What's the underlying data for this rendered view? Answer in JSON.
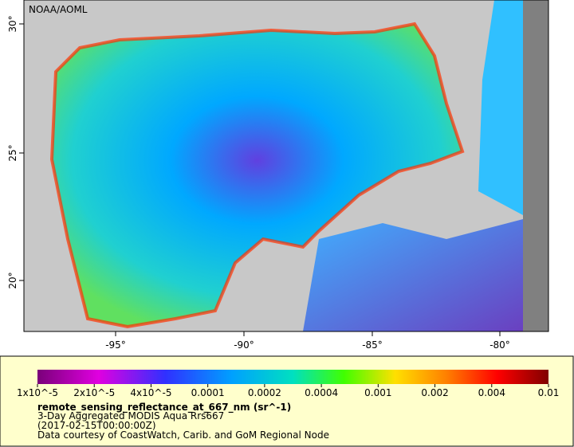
{
  "map": {
    "credit": "NOAA/AOML",
    "lat_labels": [
      "30°",
      "25°",
      "20°"
    ],
    "lon_labels": [
      "-95°",
      "-90°",
      "-85°",
      "-80°"
    ]
  },
  "legend": {
    "ticks": [
      "1x10^-5",
      "2x10^-5",
      "4x10^-5",
      "0.0001",
      "0.0002",
      "0.0004",
      "0.001",
      "0.002",
      "0.004",
      "0.01"
    ],
    "title": "remote_sensing_reflectance_at_667_nm (sr^-1)",
    "lines": [
      "3-Day Aggregated MODIS Aqua Rrs667",
      "(2017-02-15T00:00:00Z)",
      "Data courtesy of CoastWatch, Carib. and GoM Regional Node"
    ]
  }
}
